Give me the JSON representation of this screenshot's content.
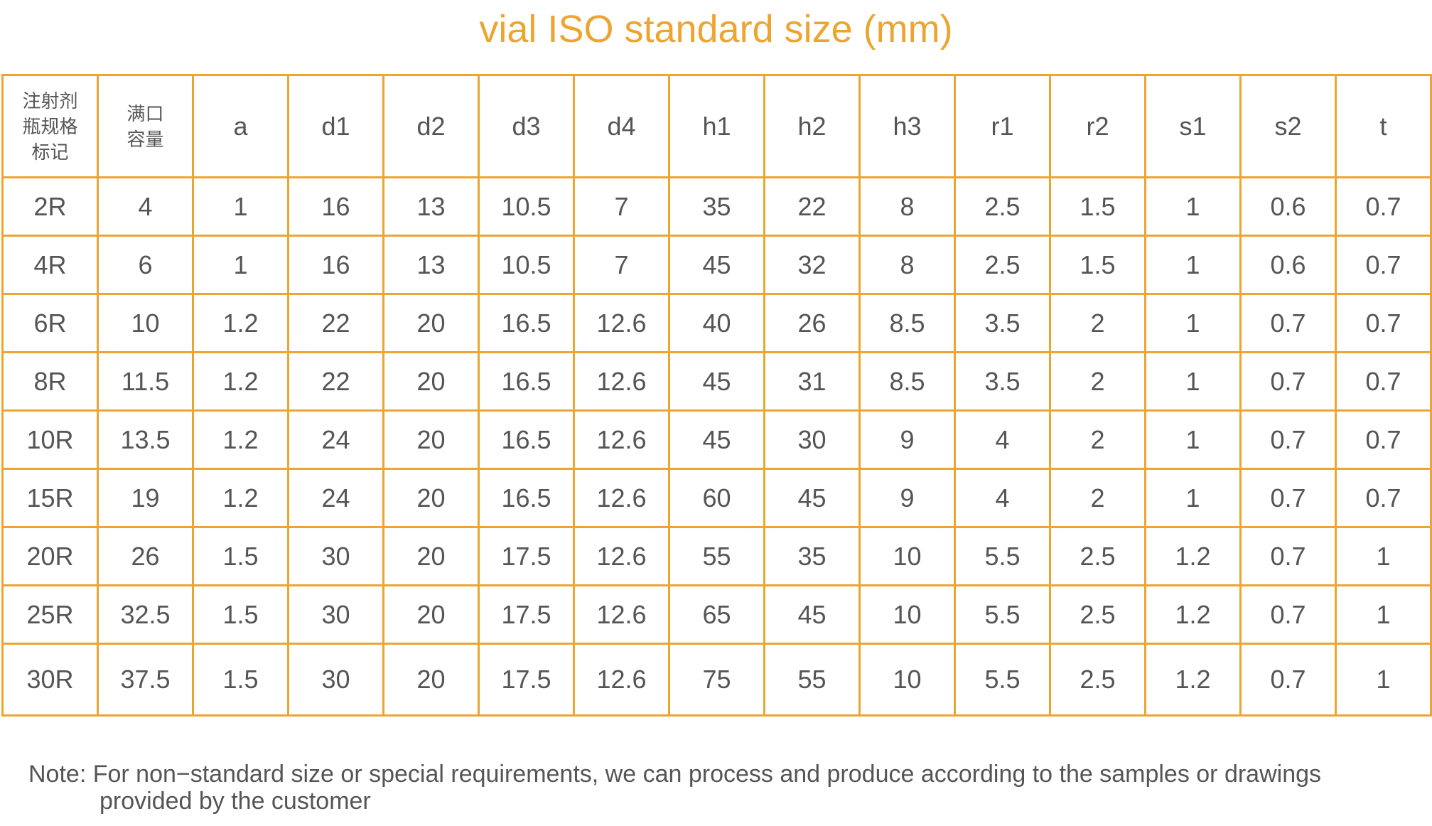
{
  "title": "vial ISO standard size (mm)",
  "table": {
    "header_zh_1": [
      "注射剂",
      "瓶规格",
      "标记"
    ],
    "header_zh_2": [
      "满口",
      "容量"
    ],
    "columns": [
      "a",
      "d1",
      "d2",
      "d3",
      "d4",
      "h1",
      "h2",
      "h3",
      "r1",
      "r2",
      "s1",
      "s2",
      "t"
    ],
    "rows": [
      [
        "2R",
        "4",
        "1",
        "16",
        "13",
        "10.5",
        "7",
        "35",
        "22",
        "8",
        "2.5",
        "1.5",
        "1",
        "0.6",
        "0.7"
      ],
      [
        "4R",
        "6",
        "1",
        "16",
        "13",
        "10.5",
        "7",
        "45",
        "32",
        "8",
        "2.5",
        "1.5",
        "1",
        "0.6",
        "0.7"
      ],
      [
        "6R",
        "10",
        "1.2",
        "22",
        "20",
        "16.5",
        "12.6",
        "40",
        "26",
        "8.5",
        "3.5",
        "2",
        "1",
        "0.7",
        "0.7"
      ],
      [
        "8R",
        "11.5",
        "1.2",
        "22",
        "20",
        "16.5",
        "12.6",
        "45",
        "31",
        "8.5",
        "3.5",
        "2",
        "1",
        "0.7",
        "0.7"
      ],
      [
        "10R",
        "13.5",
        "1.2",
        "24",
        "20",
        "16.5",
        "12.6",
        "45",
        "30",
        "9",
        "4",
        "2",
        "1",
        "0.7",
        "0.7"
      ],
      [
        "15R",
        "19",
        "1.2",
        "24",
        "20",
        "16.5",
        "12.6",
        "60",
        "45",
        "9",
        "4",
        "2",
        "1",
        "0.7",
        "0.7"
      ],
      [
        "20R",
        "26",
        "1.5",
        "30",
        "20",
        "17.5",
        "12.6",
        "55",
        "35",
        "10",
        "5.5",
        "2.5",
        "1.2",
        "0.7",
        "1"
      ],
      [
        "25R",
        "32.5",
        "1.5",
        "30",
        "20",
        "17.5",
        "12.6",
        "65",
        "45",
        "10",
        "5.5",
        "2.5",
        "1.2",
        "0.7",
        "1"
      ],
      [
        "30R",
        "37.5",
        "1.5",
        "30",
        "20",
        "17.5",
        "12.6",
        "75",
        "55",
        "10",
        "5.5",
        "2.5",
        "1.2",
        "0.7",
        "1"
      ]
    ]
  },
  "note": {
    "line1": "Note: For non−standard size or special requirements, we can process and produce according to the samples or drawings",
    "line2": "provided by the customer"
  },
  "colors": {
    "accent": "#EDA531",
    "text": "#555555",
    "background": "#FFFFFF"
  }
}
